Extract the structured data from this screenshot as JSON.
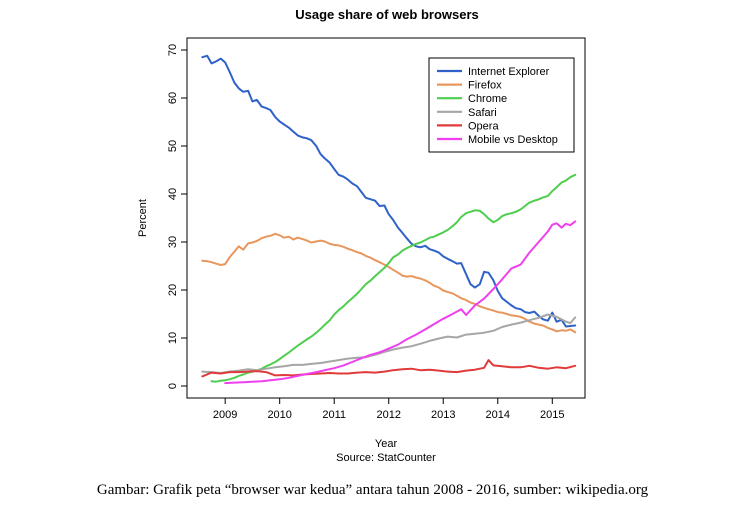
{
  "chart_data": {
    "type": "line",
    "title": "Usage share of web browsers",
    "xlabel": "Year",
    "source": "Source: StatCounter",
    "ylabel": "Percent",
    "xlim": [
      2008.3,
      2015.6
    ],
    "ylim": [
      -2.5,
      72.5
    ],
    "x_ticks": [
      "2009",
      "2010",
      "2011",
      "2012",
      "2013",
      "2014",
      "2015"
    ],
    "y_ticks": [
      "0",
      "10",
      "20",
      "30",
      "40",
      "50",
      "60",
      "70"
    ],
    "legend_position": "top-right",
    "grid": false,
    "series": [
      {
        "name": "Internet Explorer",
        "color": "#2f62c8",
        "x": [
          2008.58,
          2008.67,
          2008.75,
          2008.83,
          2008.92,
          2009.0,
          2009.08,
          2009.17,
          2009.25,
          2009.33,
          2009.42,
          2009.5,
          2009.58,
          2009.67,
          2009.75,
          2009.83,
          2009.92,
          2010.0,
          2010.08,
          2010.17,
          2010.25,
          2010.33,
          2010.42,
          2010.5,
          2010.58,
          2010.67,
          2010.75,
          2010.83,
          2010.92,
          2011.0,
          2011.08,
          2011.17,
          2011.25,
          2011.33,
          2011.42,
          2011.5,
          2011.58,
          2011.67,
          2011.75,
          2011.83,
          2011.92,
          2012.0,
          2012.08,
          2012.17,
          2012.25,
          2012.33,
          2012.42,
          2012.5,
          2012.58,
          2012.67,
          2012.75,
          2012.83,
          2012.92,
          2013.0,
          2013.08,
          2013.17,
          2013.25,
          2013.33,
          2013.42,
          2013.5,
          2013.58,
          2013.67,
          2013.75,
          2013.83,
          2013.92,
          2014.0,
          2014.08,
          2014.17,
          2014.25,
          2014.33,
          2014.42,
          2014.5,
          2014.58,
          2014.67,
          2014.75,
          2014.83,
          2014.92,
          2015.0,
          2015.08,
          2015.17,
          2015.25,
          2015.33,
          2015.42
        ],
        "values": [
          68.5,
          68.8,
          67.2,
          67.6,
          68.2,
          67.4,
          65.5,
          63.2,
          62.0,
          61.3,
          61.5,
          59.3,
          59.6,
          58.2,
          57.9,
          57.5,
          56.0,
          55.1,
          54.5,
          53.8,
          53.0,
          52.2,
          51.8,
          51.6,
          51.2,
          50.0,
          48.3,
          47.4,
          46.5,
          45.2,
          44.0,
          43.6,
          43.0,
          42.2,
          41.6,
          40.4,
          39.2,
          38.9,
          38.6,
          37.5,
          37.6,
          35.8,
          34.6,
          33.0,
          31.9,
          30.8,
          29.6,
          29.1,
          28.9,
          29.2,
          28.5,
          28.2,
          27.8,
          27.0,
          26.5,
          26.0,
          25.5,
          25.6,
          23.3,
          21.2,
          20.5,
          21.2,
          23.8,
          23.6,
          22.0,
          19.8,
          18.3,
          17.5,
          16.8,
          16.2,
          16.0,
          15.4,
          15.2,
          15.5,
          14.6,
          13.9,
          13.6,
          15.3,
          13.4,
          13.8,
          12.4,
          12.5,
          12.6
        ]
      },
      {
        "name": "Firefox",
        "color": "#e8975c",
        "x": [
          2008.58,
          2008.67,
          2008.75,
          2008.83,
          2008.92,
          2009.0,
          2009.08,
          2009.17,
          2009.25,
          2009.33,
          2009.42,
          2009.5,
          2009.58,
          2009.67,
          2009.75,
          2009.83,
          2009.92,
          2010.0,
          2010.08,
          2010.17,
          2010.25,
          2010.33,
          2010.42,
          2010.5,
          2010.58,
          2010.67,
          2010.75,
          2010.83,
          2010.92,
          2011.0,
          2011.08,
          2011.17,
          2011.25,
          2011.33,
          2011.42,
          2011.5,
          2011.58,
          2011.67,
          2011.75,
          2011.83,
          2011.92,
          2012.0,
          2012.08,
          2012.17,
          2012.25,
          2012.33,
          2012.42,
          2012.5,
          2012.58,
          2012.67,
          2012.75,
          2012.83,
          2012.92,
          2013.0,
          2013.08,
          2013.17,
          2013.25,
          2013.33,
          2013.42,
          2013.5,
          2013.58,
          2013.67,
          2013.75,
          2013.83,
          2013.92,
          2014.0,
          2014.08,
          2014.17,
          2014.25,
          2014.33,
          2014.42,
          2014.5,
          2014.58,
          2014.67,
          2014.75,
          2014.83,
          2014.92,
          2015.0,
          2015.08,
          2015.17,
          2015.25,
          2015.33,
          2015.42
        ],
        "values": [
          26.1,
          26.0,
          25.8,
          25.5,
          25.2,
          25.4,
          26.8,
          28.0,
          29.1,
          28.4,
          29.7,
          29.9,
          30.2,
          30.8,
          31.1,
          31.3,
          31.7,
          31.4,
          30.9,
          31.1,
          30.5,
          30.9,
          30.6,
          30.3,
          29.9,
          30.1,
          30.3,
          30.1,
          29.6,
          29.4,
          29.3,
          29.0,
          28.6,
          28.3,
          27.9,
          27.6,
          27.1,
          26.7,
          26.2,
          25.8,
          25.3,
          24.8,
          24.2,
          23.6,
          23.0,
          22.8,
          22.9,
          22.6,
          22.4,
          22.0,
          21.5,
          20.9,
          20.5,
          19.9,
          19.6,
          19.3,
          18.8,
          18.3,
          17.9,
          17.4,
          17.1,
          16.6,
          16.3,
          16.0,
          15.7,
          15.4,
          15.3,
          15.0,
          14.7,
          14.6,
          14.4,
          14.0,
          13.4,
          13.0,
          12.8,
          12.6,
          12.1,
          11.8,
          11.4,
          11.6,
          11.5,
          11.8,
          11.2
        ]
      },
      {
        "name": "Chrome",
        "color": "#4fcd4f",
        "x": [
          2008.75,
          2008.83,
          2008.92,
          2009.0,
          2009.08,
          2009.17,
          2009.25,
          2009.33,
          2009.42,
          2009.5,
          2009.58,
          2009.67,
          2009.75,
          2009.83,
          2009.92,
          2010.0,
          2010.08,
          2010.17,
          2010.25,
          2010.33,
          2010.42,
          2010.5,
          2010.58,
          2010.67,
          2010.75,
          2010.83,
          2010.92,
          2011.0,
          2011.08,
          2011.17,
          2011.25,
          2011.33,
          2011.42,
          2011.5,
          2011.58,
          2011.67,
          2011.75,
          2011.83,
          2011.92,
          2012.0,
          2012.08,
          2012.17,
          2012.25,
          2012.33,
          2012.42,
          2012.5,
          2012.58,
          2012.67,
          2012.75,
          2012.83,
          2012.92,
          2013.0,
          2013.08,
          2013.17,
          2013.25,
          2013.33,
          2013.42,
          2013.5,
          2013.58,
          2013.67,
          2013.75,
          2013.83,
          2013.92,
          2014.0,
          2014.08,
          2014.17,
          2014.25,
          2014.33,
          2014.42,
          2014.5,
          2014.58,
          2014.67,
          2014.75,
          2014.83,
          2014.92,
          2015.0,
          2015.08,
          2015.17,
          2015.25,
          2015.33,
          2015.42
        ],
        "values": [
          1.0,
          0.9,
          1.1,
          1.2,
          1.4,
          1.7,
          2.1,
          2.4,
          2.8,
          3.0,
          3.2,
          3.6,
          4.1,
          4.5,
          5.0,
          5.6,
          6.3,
          7.0,
          7.7,
          8.4,
          9.1,
          9.7,
          10.3,
          11.1,
          11.9,
          12.8,
          13.7,
          14.9,
          15.8,
          16.6,
          17.5,
          18.3,
          19.2,
          20.2,
          21.2,
          22.0,
          22.9,
          23.7,
          24.6,
          25.6,
          26.8,
          27.4,
          28.2,
          28.7,
          29.2,
          29.6,
          29.9,
          30.4,
          30.9,
          31.1,
          31.6,
          32.0,
          32.5,
          33.3,
          34.1,
          35.2,
          36.0,
          36.3,
          36.6,
          36.5,
          35.8,
          34.9,
          34.1,
          34.6,
          35.4,
          35.8,
          36.0,
          36.3,
          36.8,
          37.5,
          38.2,
          38.6,
          38.9,
          39.3,
          39.6,
          40.6,
          41.4,
          42.4,
          42.8,
          43.5,
          44.0
        ]
      },
      {
        "name": "Safari",
        "color": "#a6a6a6",
        "x": [
          2008.58,
          2008.75,
          2008.92,
          2009.08,
          2009.25,
          2009.42,
          2009.58,
          2009.75,
          2009.92,
          2010.08,
          2010.25,
          2010.42,
          2010.58,
          2010.75,
          2010.92,
          2011.08,
          2011.25,
          2011.42,
          2011.58,
          2011.75,
          2011.92,
          2012.08,
          2012.25,
          2012.42,
          2012.58,
          2012.75,
          2012.92,
          2013.08,
          2013.25,
          2013.42,
          2013.58,
          2013.75,
          2013.92,
          2014.08,
          2014.25,
          2014.42,
          2014.58,
          2014.75,
          2014.92,
          2015.08,
          2015.25,
          2015.33,
          2015.42
        ],
        "values": [
          3.0,
          2.9,
          2.7,
          3.0,
          3.2,
          3.5,
          3.3,
          3.6,
          3.9,
          4.1,
          4.4,
          4.4,
          4.6,
          4.8,
          5.1,
          5.4,
          5.7,
          5.9,
          6.0,
          6.5,
          7.1,
          7.6,
          8.0,
          8.3,
          8.8,
          9.4,
          9.9,
          10.3,
          10.1,
          10.7,
          10.9,
          11.1,
          11.5,
          12.3,
          12.8,
          13.2,
          13.7,
          14.2,
          14.9,
          14.4,
          13.4,
          13.1,
          14.3
        ]
      },
      {
        "name": "Opera",
        "color": "#e03a3a",
        "x": [
          2008.58,
          2008.75,
          2008.92,
          2009.08,
          2009.25,
          2009.42,
          2009.58,
          2009.75,
          2009.92,
          2010.08,
          2010.25,
          2010.42,
          2010.58,
          2010.75,
          2010.92,
          2011.08,
          2011.25,
          2011.42,
          2011.58,
          2011.75,
          2011.92,
          2012.08,
          2012.25,
          2012.42,
          2012.58,
          2012.75,
          2012.92,
          2013.08,
          2013.25,
          2013.42,
          2013.58,
          2013.75,
          2013.83,
          2013.92,
          2014.08,
          2014.25,
          2014.42,
          2014.58,
          2014.75,
          2014.92,
          2015.08,
          2015.25,
          2015.42
        ],
        "values": [
          2.0,
          2.8,
          2.6,
          2.9,
          2.9,
          3.0,
          3.1,
          2.9,
          2.2,
          2.3,
          2.2,
          2.4,
          2.5,
          2.6,
          2.7,
          2.6,
          2.6,
          2.8,
          2.9,
          2.8,
          3.0,
          3.3,
          3.5,
          3.6,
          3.3,
          3.4,
          3.2,
          3.0,
          2.9,
          3.2,
          3.4,
          3.8,
          5.4,
          4.3,
          4.1,
          3.9,
          3.9,
          4.2,
          3.8,
          3.6,
          3.9,
          3.7,
          4.2
        ]
      },
      {
        "name": "Mobile vs Desktop",
        "color": "#ef3fef",
        "x": [
          2009.0,
          2009.17,
          2009.33,
          2009.5,
          2009.67,
          2009.83,
          2010.0,
          2010.17,
          2010.33,
          2010.5,
          2010.67,
          2010.83,
          2011.0,
          2011.17,
          2011.33,
          2011.5,
          2011.67,
          2011.83,
          2012.0,
          2012.17,
          2012.33,
          2012.5,
          2012.67,
          2012.83,
          2013.0,
          2013.17,
          2013.33,
          2013.42,
          2013.58,
          2013.75,
          2013.92,
          2014.08,
          2014.25,
          2014.42,
          2014.58,
          2014.75,
          2014.92,
          2015.0,
          2015.08,
          2015.17,
          2015.25,
          2015.33,
          2015.42
        ],
        "values": [
          0.6,
          0.7,
          0.8,
          0.9,
          1.0,
          1.2,
          1.4,
          1.7,
          2.1,
          2.5,
          2.9,
          3.3,
          3.7,
          4.3,
          5.0,
          5.8,
          6.5,
          7.0,
          7.8,
          8.6,
          9.7,
          10.7,
          11.8,
          12.9,
          14.0,
          15.0,
          16.0,
          14.8,
          16.8,
          18.2,
          20.2,
          22.2,
          24.5,
          25.3,
          27.8,
          30.0,
          32.2,
          33.6,
          33.9,
          33.0,
          33.8,
          33.5,
          34.3
        ]
      }
    ]
  },
  "caption": "Gambar: Grafik peta “browser war kedua” antara tahun 2008 - 2016, sumber: wikipedia.org"
}
